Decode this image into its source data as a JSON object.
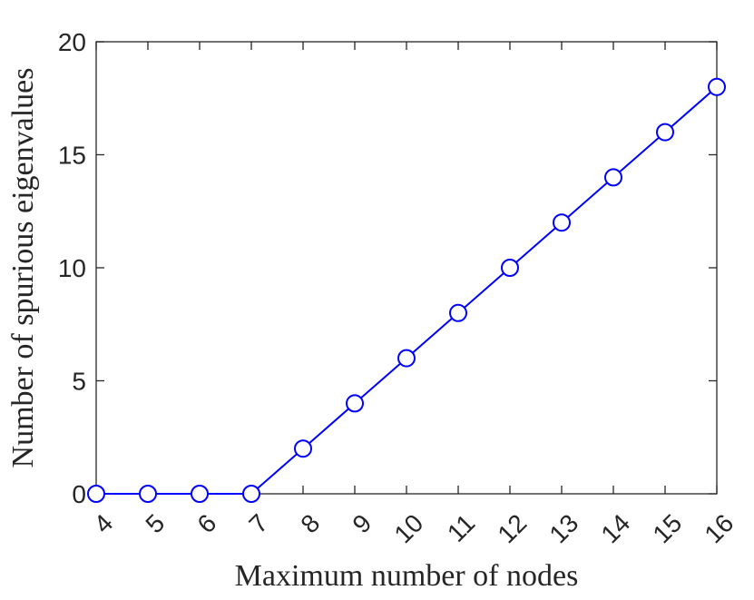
{
  "chart_data": {
    "type": "line",
    "title": "",
    "xlabel": "Maximum number of nodes",
    "ylabel": "Number of spurious eigenvalues",
    "x": [
      4,
      5,
      6,
      7,
      8,
      9,
      10,
      11,
      12,
      13,
      14,
      15,
      16
    ],
    "series": [
      {
        "values": [
          0,
          0,
          0,
          0,
          2,
          4,
          6,
          8,
          10,
          12,
          14,
          16,
          18
        ],
        "color": "#0000ff",
        "marker": "circle-open"
      }
    ],
    "xlim": [
      4,
      16
    ],
    "ylim": [
      0,
      20
    ],
    "xticks": [
      4,
      5,
      6,
      7,
      8,
      9,
      10,
      11,
      12,
      13,
      14,
      15,
      16
    ],
    "yticks": [
      0,
      5,
      10,
      15,
      20
    ],
    "grid": false,
    "box": true
  }
}
